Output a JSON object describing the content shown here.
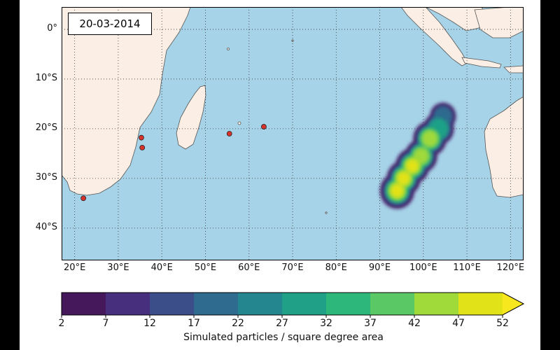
{
  "date_label": "20-03-2014",
  "map": {
    "lon_range": [
      17,
      123
    ],
    "lat_range": [
      -46.5,
      4.5
    ],
    "lon_ticks": [
      {
        "value": 20,
        "label": "20°E"
      },
      {
        "value": 30,
        "label": "30°E"
      },
      {
        "value": 40,
        "label": "40°E"
      },
      {
        "value": 50,
        "label": "50°E"
      },
      {
        "value": 60,
        "label": "60°E"
      },
      {
        "value": 70,
        "label": "70°E"
      },
      {
        "value": 80,
        "label": "80°E"
      },
      {
        "value": 90,
        "label": "90°E"
      },
      {
        "value": 100,
        "label": "100°E"
      },
      {
        "value": 110,
        "label": "110°E"
      },
      {
        "value": 120,
        "label": "120°E"
      }
    ],
    "lat_ticks": [
      {
        "value": 0,
        "label": "0°"
      },
      {
        "value": -10,
        "label": "10°S"
      },
      {
        "value": -20,
        "label": "20°S"
      },
      {
        "value": -30,
        "label": "30°S"
      },
      {
        "value": -40,
        "label": "40°S"
      }
    ],
    "ocean_color": "#a6d3e8",
    "land_color": "#fbeee4",
    "marker_color": "#d9322a"
  },
  "chart_data": {
    "type": "heatmap",
    "colorbar": {
      "label": "Simulated particles / square degree area",
      "ticks": [
        "2",
        "7",
        "12",
        "17",
        "22",
        "27",
        "32",
        "37",
        "42",
        "47",
        "52"
      ],
      "colors": [
        "#45185b",
        "#482f7d",
        "#3c4e8a",
        "#2f6b8e",
        "#24868e",
        "#1fa087",
        "#2db77a",
        "#5ac864",
        "#a0d93a",
        "#e2e219"
      ],
      "extend": "max"
    },
    "particle_field": [
      {
        "lon": 94,
        "lat": -32.5,
        "value": 52
      },
      {
        "lon": 95.5,
        "lat": -30,
        "value": 50
      },
      {
        "lon": 97.5,
        "lat": -27.5,
        "value": 50
      },
      {
        "lon": 99.5,
        "lat": -25.5,
        "value": 44
      },
      {
        "lon": 101.5,
        "lat": -22,
        "value": 48
      },
      {
        "lon": 103.5,
        "lat": -20,
        "value": 38
      },
      {
        "lon": 104.5,
        "lat": -17.5,
        "value": 20
      }
    ],
    "markers": [
      {
        "lon": 22,
        "lat": -34
      },
      {
        "lon": 35.3,
        "lat": -21.8
      },
      {
        "lon": 35.5,
        "lat": -23.8
      },
      {
        "lon": 55.5,
        "lat": -21
      },
      {
        "lon": 63.4,
        "lat": -19.6
      }
    ]
  }
}
